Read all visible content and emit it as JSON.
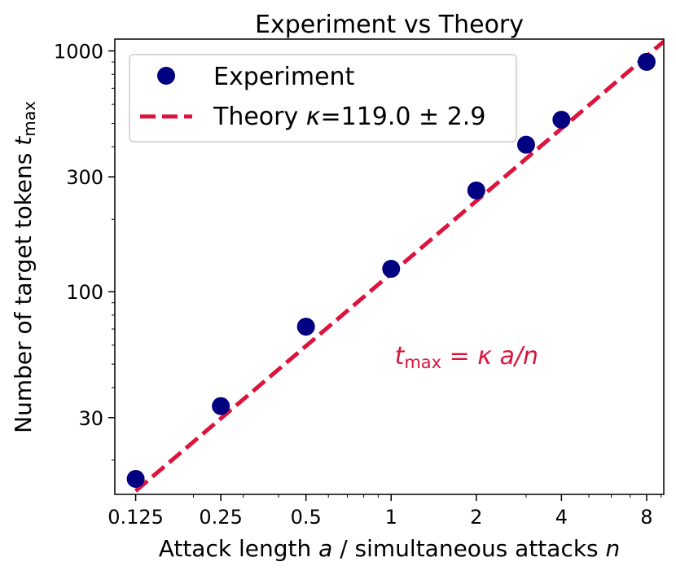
{
  "chart_data": {
    "type": "scatter",
    "title": "Experiment vs Theory",
    "xlabel": "Attack length a / simultaneous attacks n",
    "ylabel": "Number of target tokens t_max",
    "xscale": "log2",
    "yscale": "log10",
    "xlim": [
      0.1055,
      9.2
    ],
    "ylim": [
      14.4,
      1120
    ],
    "xticks": [
      0.125,
      0.25,
      0.5,
      1,
      2,
      4,
      8
    ],
    "xtick_labels": [
      "0.125",
      "0.25",
      "0.5",
      "1",
      "2",
      "4",
      "8"
    ],
    "yticks": [
      30,
      100,
      300,
      1000
    ],
    "ytick_labels": [
      "30",
      "100",
      "300",
      "1000"
    ],
    "grid": false,
    "legend_position": "top-left",
    "series": [
      {
        "name": "Experiment",
        "kind": "scatter",
        "color": "#000080",
        "x": [
          0.125,
          0.25,
          0.5,
          1,
          2,
          3,
          4,
          8
        ],
        "y": [
          16.7,
          33.5,
          71.6,
          124.5,
          263.4,
          407.9,
          518.0,
          901.0
        ]
      },
      {
        "name": "Theory κ=119.0 ± 2.9",
        "kind": "line",
        "style": "dashed",
        "color": "#dc143c",
        "kappa": 119.0,
        "x_range": [
          0.125,
          9.2
        ]
      }
    ],
    "annotation": {
      "text": "t_max = κ a/n",
      "color": "#dc143c",
      "x": 2,
      "y": 55
    }
  }
}
